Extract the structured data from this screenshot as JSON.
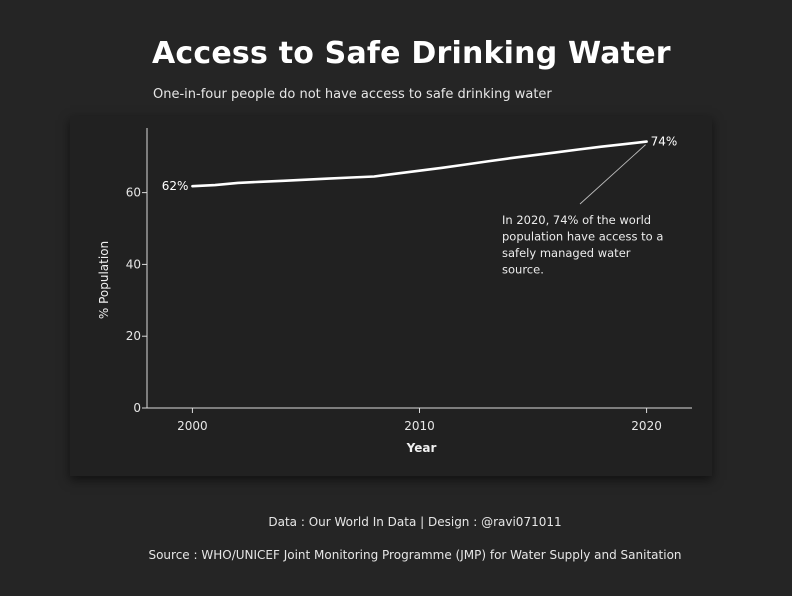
{
  "header": {
    "title": "Access to Safe Drinking Water",
    "subtitle": "One-in-four people do not have access to safe drinking water"
  },
  "footer": {
    "credit": "Data : Our World In Data | Design : @ravi071011",
    "source": "Source : WHO/UNICEF Joint Monitoring Programme (JMP) for Water Supply and Sanitation"
  },
  "colors": {
    "background": "#252525",
    "panel": "#212121",
    "line": "#ffffff",
    "text": "#e6e6e6"
  },
  "chart_data": {
    "type": "line",
    "title": "",
    "xlabel": "Year",
    "ylabel": "% Population",
    "xlim": [
      1998,
      2022
    ],
    "ylim": [
      0,
      78
    ],
    "xticks": [
      2000,
      2010,
      2020
    ],
    "yticks": [
      0,
      20,
      40,
      60
    ],
    "grid": false,
    "series": [
      {
        "x": [
          2000,
          2001,
          2002,
          2003,
          2004,
          2005,
          2006,
          2007,
          2008,
          2009,
          2010,
          2011,
          2012,
          2013,
          2014,
          2015,
          2016,
          2017,
          2018,
          2019,
          2020
        ],
        "y": [
          61.8,
          62.1,
          62.7,
          63.0,
          63.3,
          63.6,
          63.9,
          64.2,
          64.5,
          65.3,
          66.1,
          66.9,
          67.8,
          68.7,
          69.6,
          70.4,
          71.2,
          72.0,
          72.8,
          73.5,
          74.2
        ]
      }
    ],
    "point_labels": [
      {
        "x": 2000,
        "y": 61.8,
        "text": "62%"
      },
      {
        "x": 2020,
        "y": 74.2,
        "text": "74%"
      }
    ],
    "annotation": {
      "lines": [
        "In 2020, 74% of the world",
        "population have access to a",
        "safely managed water",
        "source."
      ],
      "target": {
        "x": 2020,
        "y": 74.2
      }
    }
  }
}
